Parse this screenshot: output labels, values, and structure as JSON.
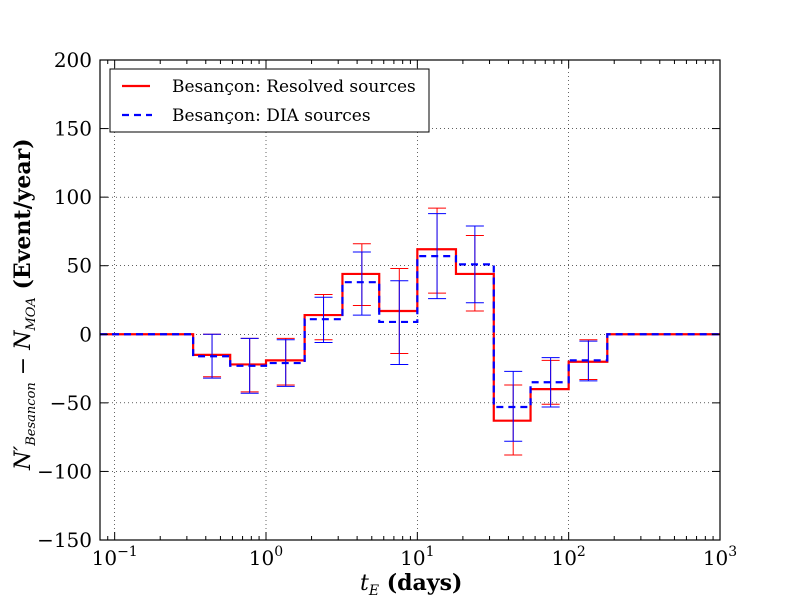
{
  "chart_data": {
    "type": "step",
    "xscale": "log",
    "xlim": [
      0.08,
      1000
    ],
    "ylim": [
      -150,
      200
    ],
    "yticks": [
      -150,
      -100,
      -50,
      0,
      50,
      100,
      150,
      200
    ],
    "ytick_labels": [
      "−150",
      "−100",
      "−50",
      "0",
      "50",
      "100",
      "150",
      "200"
    ],
    "xtick_decades": [
      {
        "value": 0.1,
        "base": "10",
        "exp": "−1"
      },
      {
        "value": 1,
        "base": "10",
        "exp": "0"
      },
      {
        "value": 10,
        "base": "10",
        "exp": "1"
      },
      {
        "value": 100,
        "base": "10",
        "exp": "2"
      },
      {
        "value": 1000,
        "base": "10",
        "exp": "3"
      }
    ],
    "xlabel": {
      "var": "t",
      "sub": "E",
      "unit": " (days)"
    },
    "ylabel": {
      "var": "N′",
      "sub1": "Besancon",
      "mid": " − N",
      "sub2": "MOA",
      "unit": " (Event/year)"
    },
    "grid": true,
    "legend_location": "upper-left",
    "series": [
      {
        "name": "Besançon: Resolved sources",
        "color": "#ff0000",
        "style": "solid",
        "bin_edges": [
          0.08,
          0.33,
          0.58,
          1.0,
          1.8,
          3.2,
          5.6,
          10,
          18,
          32,
          56,
          100,
          180,
          1000
        ],
        "values": [
          0,
          -15,
          -22,
          -19,
          14,
          44,
          17,
          62,
          44,
          -63,
          -40,
          -20,
          0
        ],
        "errors": [
          {
            "x": 0.44,
            "y": -15,
            "lo": -31,
            "hi": 0
          },
          {
            "x": 0.78,
            "y": -22,
            "lo": -42,
            "hi": -3
          },
          {
            "x": 1.35,
            "y": -19,
            "lo": -37,
            "hi": -3
          },
          {
            "x": 2.4,
            "y": 14,
            "lo": -4,
            "hi": 29
          },
          {
            "x": 4.3,
            "y": 44,
            "lo": 21,
            "hi": 66
          },
          {
            "x": 7.6,
            "y": 17,
            "lo": -14,
            "hi": 48
          },
          {
            "x": 13.5,
            "y": 62,
            "lo": 30,
            "hi": 92
          },
          {
            "x": 24,
            "y": 44,
            "lo": 17,
            "hi": 72
          },
          {
            "x": 43,
            "y": -63,
            "lo": -88,
            "hi": -37
          },
          {
            "x": 76,
            "y": -40,
            "lo": -51,
            "hi": -19
          },
          {
            "x": 135,
            "y": -20,
            "lo": -33,
            "hi": -4
          }
        ]
      },
      {
        "name": "Besançon: DIA sources",
        "color": "#0000ff",
        "style": "dashed",
        "bin_edges": [
          0.08,
          0.33,
          0.58,
          1.0,
          1.8,
          3.2,
          5.6,
          10,
          18,
          32,
          56,
          100,
          180,
          1000
        ],
        "values": [
          0,
          -16,
          -23,
          -21,
          11,
          38,
          9,
          57,
          51,
          -53,
          -35,
          -19,
          0
        ],
        "errors": [
          {
            "x": 0.44,
            "y": -16,
            "lo": -32,
            "hi": 0
          },
          {
            "x": 0.78,
            "y": -23,
            "lo": -43,
            "hi": -3
          },
          {
            "x": 1.35,
            "y": -21,
            "lo": -38,
            "hi": -4
          },
          {
            "x": 2.4,
            "y": 11,
            "lo": -6,
            "hi": 27
          },
          {
            "x": 4.3,
            "y": 38,
            "lo": 14,
            "hi": 60
          },
          {
            "x": 7.6,
            "y": 9,
            "lo": -22,
            "hi": 39
          },
          {
            "x": 13.5,
            "y": 57,
            "lo": 26,
            "hi": 88
          },
          {
            "x": 24,
            "y": 51,
            "lo": 23,
            "hi": 79
          },
          {
            "x": 43,
            "y": -53,
            "lo": -78,
            "hi": -27
          },
          {
            "x": 76,
            "y": -35,
            "lo": -53,
            "hi": -17
          },
          {
            "x": 135,
            "y": -19,
            "lo": -34,
            "hi": -5
          }
        ]
      }
    ]
  }
}
